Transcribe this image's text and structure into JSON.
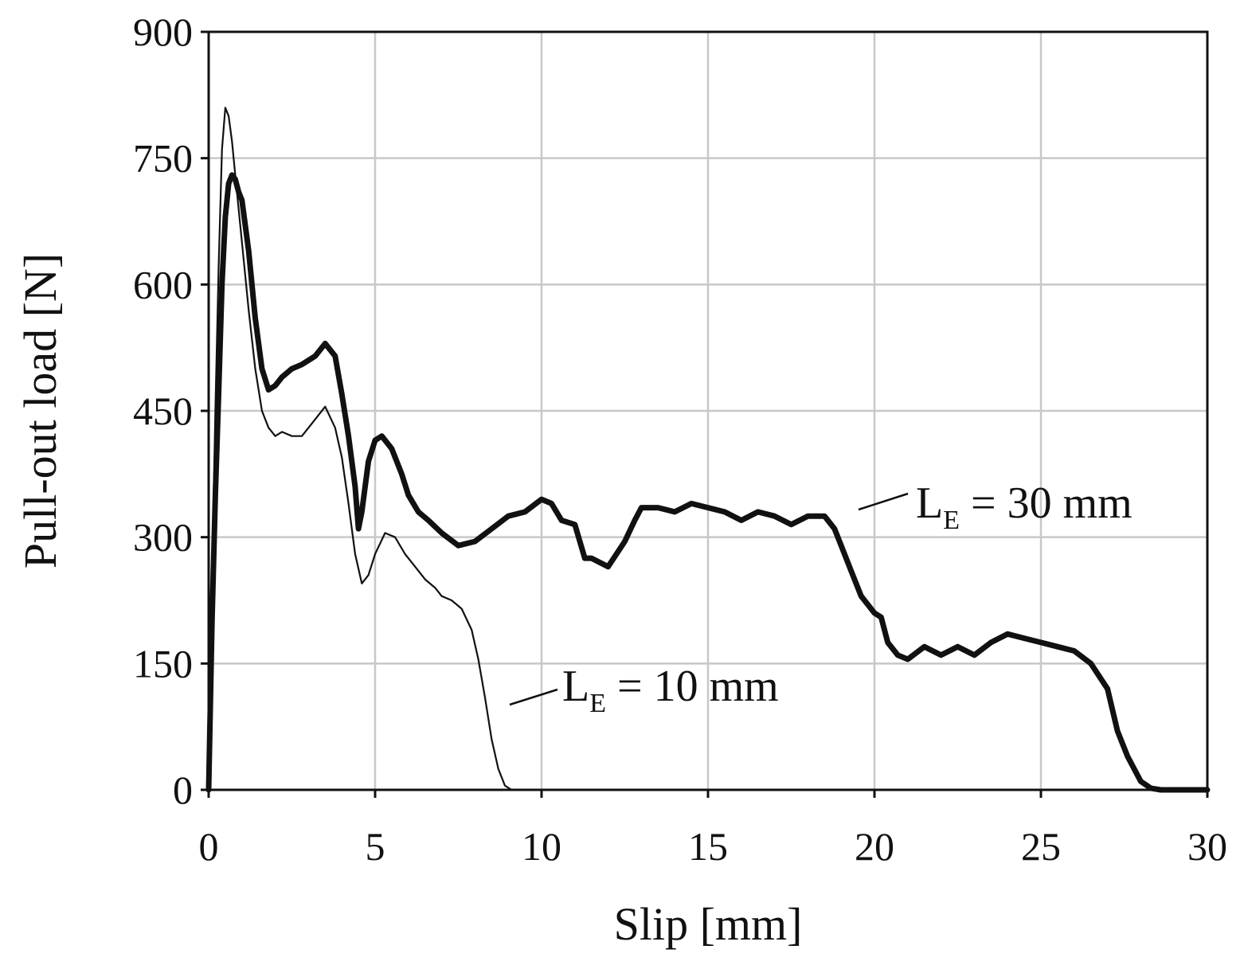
{
  "chart_data": {
    "type": "line",
    "xlabel": "Slip [mm]",
    "ylabel": "Pull-out load [N]",
    "xlim": [
      0,
      30
    ],
    "ylim": [
      0,
      900
    ],
    "x_ticks": [
      0,
      5,
      10,
      15,
      20,
      25,
      30
    ],
    "y_ticks": [
      0,
      150,
      300,
      450,
      600,
      750,
      900
    ],
    "grid": true,
    "series": [
      {
        "name": "LE = 30 mm",
        "label_main": "L",
        "label_sub": "E",
        "label_rest": " = 30 mm",
        "line_weight": "thick",
        "x": [
          0,
          0.1,
          0.2,
          0.3,
          0.4,
          0.5,
          0.6,
          0.7,
          0.8,
          0.9,
          1.0,
          1.2,
          1.4,
          1.6,
          1.8,
          2.0,
          2.2,
          2.5,
          2.8,
          3.0,
          3.2,
          3.5,
          3.8,
          4.0,
          4.2,
          4.4,
          4.5,
          4.6,
          4.8,
          5.0,
          5.2,
          5.5,
          5.8,
          6.0,
          6.3,
          6.6,
          7.0,
          7.5,
          8.0,
          8.5,
          9.0,
          9.5,
          10.0,
          10.3,
          10.6,
          11.0,
          11.3,
          11.5,
          12.0,
          12.5,
          12.8,
          13.0,
          13.5,
          14.0,
          14.5,
          15.0,
          15.5,
          16.0,
          16.5,
          17.0,
          17.5,
          18.0,
          18.5,
          18.8,
          19.0,
          19.3,
          19.6,
          20.0,
          20.2,
          20.4,
          20.7,
          21.0,
          21.5,
          22.0,
          22.5,
          23.0,
          23.5,
          24.0,
          24.5,
          25.0,
          25.5,
          26.0,
          26.5,
          27.0,
          27.3,
          27.6,
          28.0,
          28.3,
          28.6,
          29.0,
          30.0
        ],
        "y": [
          0,
          200,
          350,
          470,
          600,
          680,
          720,
          730,
          725,
          710,
          700,
          640,
          560,
          500,
          475,
          480,
          490,
          500,
          505,
          510,
          515,
          530,
          515,
          470,
          420,
          360,
          310,
          330,
          390,
          415,
          420,
          405,
          375,
          350,
          330,
          320,
          305,
          290,
          295,
          310,
          325,
          330,
          345,
          340,
          320,
          315,
          275,
          275,
          265,
          295,
          320,
          335,
          335,
          330,
          340,
          335,
          330,
          320,
          330,
          325,
          315,
          325,
          325,
          310,
          290,
          260,
          230,
          210,
          205,
          175,
          160,
          155,
          170,
          160,
          170,
          160,
          175,
          185,
          180,
          175,
          170,
          165,
          150,
          120,
          70,
          40,
          10,
          2,
          0,
          0,
          0
        ]
      },
      {
        "name": "LE = 10 mm",
        "label_main": "L",
        "label_sub": "E",
        "label_rest": " = 10 mm",
        "line_weight": "thin",
        "x": [
          0,
          0.1,
          0.2,
          0.3,
          0.4,
          0.5,
          0.6,
          0.7,
          0.8,
          0.9,
          1.0,
          1.2,
          1.4,
          1.6,
          1.8,
          2.0,
          2.2,
          2.5,
          2.8,
          3.0,
          3.2,
          3.5,
          3.8,
          4.0,
          4.2,
          4.4,
          4.6,
          4.8,
          5.0,
          5.3,
          5.6,
          5.9,
          6.2,
          6.5,
          6.8,
          7.0,
          7.3,
          7.6,
          7.9,
          8.1,
          8.3,
          8.5,
          8.7,
          8.9,
          9.1
        ],
        "y": [
          0,
          250,
          450,
          620,
          760,
          810,
          800,
          770,
          730,
          690,
          650,
          570,
          500,
          450,
          430,
          420,
          425,
          420,
          420,
          430,
          440,
          455,
          430,
          395,
          340,
          280,
          245,
          255,
          280,
          305,
          300,
          280,
          265,
          250,
          240,
          230,
          225,
          215,
          190,
          155,
          110,
          60,
          25,
          5,
          0
        ]
      }
    ]
  }
}
